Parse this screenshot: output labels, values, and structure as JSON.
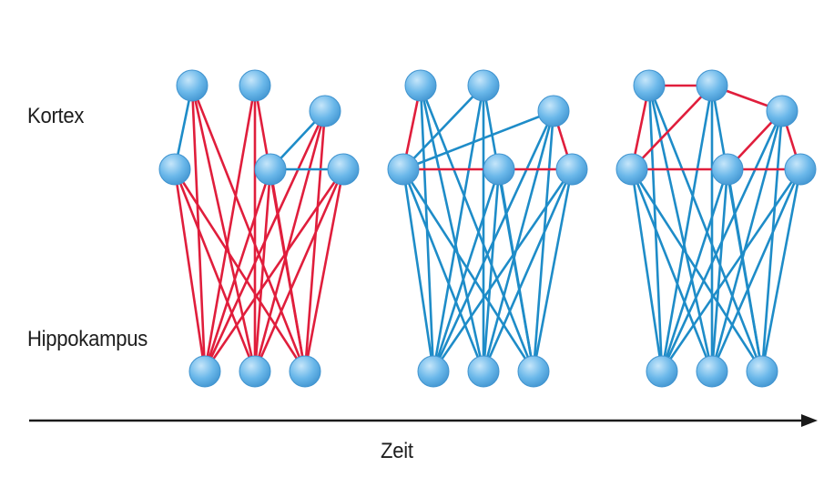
{
  "labels": {
    "cortex": "Kortex",
    "hippocampus": "Hippokampus",
    "time": "Zeit"
  },
  "colors": {
    "node_fill": "#6bb8ea",
    "node_stroke": "#3f93cf",
    "edge_red": "#e01e3c",
    "edge_blue": "#1e8cc8",
    "axis": "#1a1a1a"
  },
  "panels": [
    {
      "id": "stage-1",
      "hippo_to_cortex": "red",
      "cortex_edges": [
        {
          "from": "a",
          "to": "d",
          "color": "blue"
        },
        {
          "from": "c",
          "to": "e",
          "color": "blue"
        },
        {
          "from": "e",
          "to": "f",
          "color": "blue"
        }
      ]
    },
    {
      "id": "stage-2",
      "hippo_to_cortex": "blue",
      "cortex_edges": [
        {
          "from": "a",
          "to": "d",
          "color": "red"
        },
        {
          "from": "b",
          "to": "d",
          "color": "blue"
        },
        {
          "from": "c",
          "to": "d",
          "color": "blue"
        },
        {
          "from": "c",
          "to": "f",
          "color": "red"
        },
        {
          "from": "d",
          "to": "f",
          "color": "red"
        }
      ]
    },
    {
      "id": "stage-3",
      "hippo_to_cortex": "blue",
      "cortex_edges": [
        {
          "from": "a",
          "to": "b",
          "color": "red"
        },
        {
          "from": "a",
          "to": "d",
          "color": "red"
        },
        {
          "from": "b",
          "to": "c",
          "color": "red"
        },
        {
          "from": "b",
          "to": "d",
          "color": "red"
        },
        {
          "from": "c",
          "to": "f",
          "color": "red"
        },
        {
          "from": "c",
          "to": "e",
          "color": "red"
        },
        {
          "from": "d",
          "to": "f",
          "color": "red"
        }
      ]
    }
  ]
}
